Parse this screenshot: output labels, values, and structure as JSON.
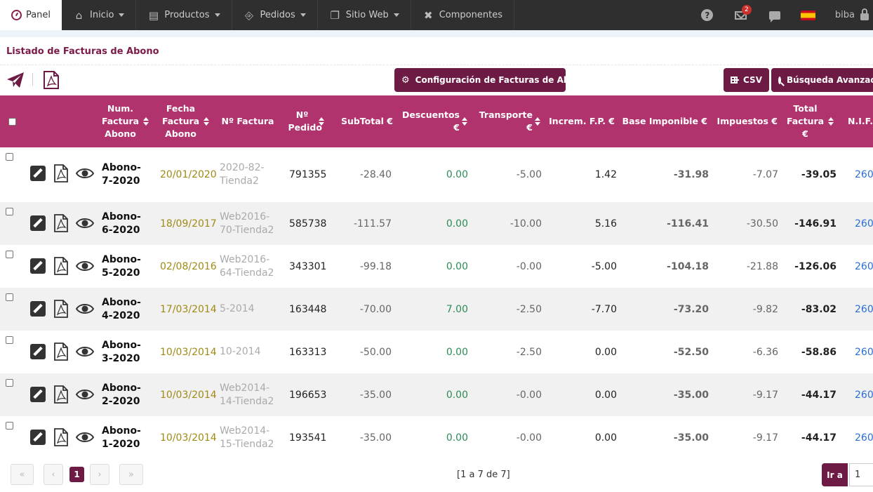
{
  "navbar": {
    "brand": "Panel",
    "items": [
      {
        "label": "Inicio",
        "icon": "home-icon",
        "dropdown": true
      },
      {
        "label": "Productos",
        "icon": "products-icon",
        "dropdown": true
      },
      {
        "label": "Pedidos",
        "icon": "cart-icon",
        "dropdown": true
      },
      {
        "label": "Sitio Web",
        "icon": "window-icon",
        "dropdown": true
      },
      {
        "label": "Componentes",
        "icon": "tools-icon",
        "dropdown": false
      }
    ],
    "mail_count": "2",
    "user": "biba"
  },
  "page": {
    "title": "Listado de Facturas de Abono"
  },
  "toolbar": {
    "config_label": "Configuración de Facturas de Abono",
    "csv_label": "CSV",
    "search_label": "Búsqueda Avanzada"
  },
  "table": {
    "headers": {
      "num": "Num. Factura Abono",
      "fecha": "Fecha Factura Abono",
      "nfactura": "Nº Factura",
      "npedido": "Nº Pedido",
      "subtotal": "SubTotal €",
      "descuentos": "Descuentos €",
      "transporte": "Transporte €",
      "incremfp": "Increm. F.P. €",
      "base": "Base Imponible €",
      "impuestos": "Impuestos €",
      "total": "Total Factura €",
      "nif": "N.I.F."
    },
    "rows": [
      {
        "num": "Abono-7-2020",
        "fecha": "20/01/2020",
        "nfactura": "2020-82-Tienda2",
        "npedido": "791355",
        "subtotal": "-28.40",
        "descuentos": "0.00",
        "transporte": "-5.00",
        "incremfp": "1.42",
        "base": "-31.98",
        "impuestos": "-7.07",
        "total": "-39.05",
        "nif": "260"
      },
      {
        "num": "Abono-6-2020",
        "fecha": "18/09/2017",
        "nfactura": "Web2016-70-Tienda2",
        "npedido": "585738",
        "subtotal": "-111.57",
        "descuentos": "0.00",
        "transporte": "-10.00",
        "incremfp": "5.16",
        "base": "-116.41",
        "impuestos": "-30.50",
        "total": "-146.91",
        "nif": "260"
      },
      {
        "num": "Abono-5-2020",
        "fecha": "02/08/2016",
        "nfactura": "Web2016-64-Tienda2",
        "npedido": "343301",
        "subtotal": "-99.18",
        "descuentos": "0.00",
        "transporte": "-0.00",
        "incremfp": "-5.00",
        "base": "-104.18",
        "impuestos": "-21.88",
        "total": "-126.06",
        "nif": "260"
      },
      {
        "num": "Abono-4-2020",
        "fecha": "17/03/2014",
        "nfactura": "5-2014",
        "npedido": "163448",
        "subtotal": "-70.00",
        "descuentos": "7.00",
        "transporte": "-2.50",
        "incremfp": "-7.70",
        "base": "-73.20",
        "impuestos": "-9.82",
        "total": "-83.02",
        "nif": "260"
      },
      {
        "num": "Abono-3-2020",
        "fecha": "10/03/2014",
        "nfactura": "10-2014",
        "npedido": "163313",
        "subtotal": "-50.00",
        "descuentos": "0.00",
        "transporte": "-2.50",
        "incremfp": "0.00",
        "base": "-52.50",
        "impuestos": "-6.36",
        "total": "-58.86",
        "nif": "260"
      },
      {
        "num": "Abono-2-2020",
        "fecha": "10/03/2014",
        "nfactura": "Web2014-14-Tienda2",
        "npedido": "196653",
        "subtotal": "-35.00",
        "descuentos": "0.00",
        "transporte": "-0.00",
        "incremfp": "0.00",
        "base": "-35.00",
        "impuestos": "-9.17",
        "total": "-44.17",
        "nif": "260"
      },
      {
        "num": "Abono-1-2020",
        "fecha": "10/03/2014",
        "nfactura": "Web2014-15-Tienda2",
        "npedido": "193541",
        "subtotal": "-35.00",
        "descuentos": "0.00",
        "transporte": "-0.00",
        "incremfp": "0.00",
        "base": "-35.00",
        "impuestos": "-9.17",
        "total": "-44.17",
        "nif": "260"
      }
    ]
  },
  "pagination": {
    "current": "1",
    "info": "[1 a 7 de 7]",
    "go_label": "Ir a",
    "page_value": "1"
  },
  "colors": {
    "accent": "#6d1a44",
    "header": "#b0336d",
    "navbar": "#2f2f2f"
  }
}
